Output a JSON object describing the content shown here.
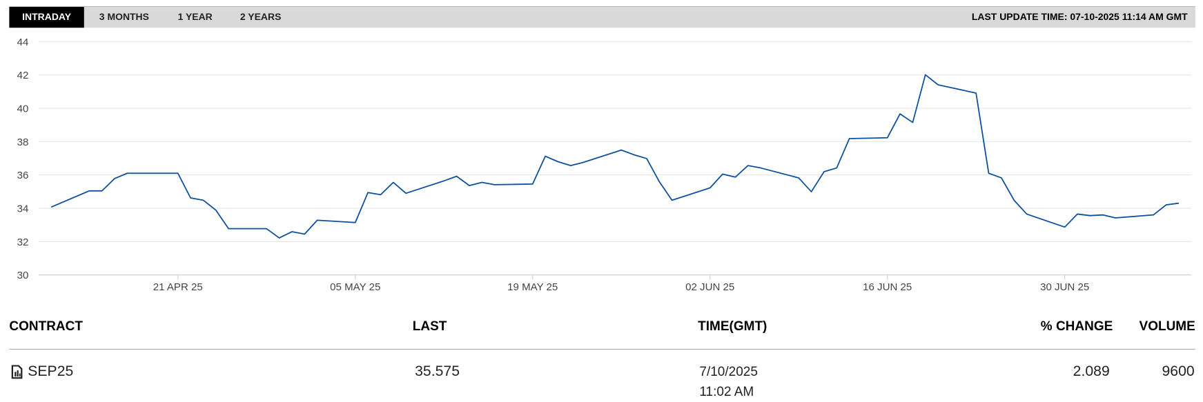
{
  "tabs": [
    "INTRADAY",
    "3 MONTHS",
    "1 YEAR",
    "2 YEARS"
  ],
  "last_update": "LAST UPDATE TIME: 07-10-2025 11:14 AM GMT",
  "chart_data": {
    "type": "line",
    "color": "#0b4f9e",
    "grid": true,
    "x": [
      "2025-04-11",
      "2025-04-14",
      "2025-04-15",
      "2025-04-16",
      "2025-04-17",
      "2025-04-21",
      "2025-04-22",
      "2025-04-23",
      "2025-04-24",
      "2025-04-25",
      "2025-04-28",
      "2025-04-29",
      "2025-04-30",
      "2025-05-01",
      "2025-05-02",
      "2025-05-05",
      "2025-05-06",
      "2025-05-07",
      "2025-05-08",
      "2025-05-09",
      "2025-05-12",
      "2025-05-13",
      "2025-05-14",
      "2025-05-15",
      "2025-05-16",
      "2025-05-19",
      "2025-05-20",
      "2025-05-21",
      "2025-05-22",
      "2025-05-23",
      "2025-05-26",
      "2025-05-27",
      "2025-05-28",
      "2025-05-29",
      "2025-05-30",
      "2025-06-02",
      "2025-06-03",
      "2025-06-04",
      "2025-06-05",
      "2025-06-06",
      "2025-06-09",
      "2025-06-10",
      "2025-06-11",
      "2025-06-12",
      "2025-06-13",
      "2025-06-16",
      "2025-06-17",
      "2025-06-18",
      "2025-06-19",
      "2025-06-20",
      "2025-06-23",
      "2025-06-24",
      "2025-06-25",
      "2025-06-26",
      "2025-06-27",
      "2025-06-30",
      "2025-07-01",
      "2025-07-02",
      "2025-07-03",
      "2025-07-04",
      "2025-07-07",
      "2025-07-08",
      "2025-07-09"
    ],
    "values": [
      34.07,
      35.04,
      35.04,
      35.78,
      36.1,
      36.1,
      34.62,
      34.48,
      33.88,
      32.77,
      32.77,
      32.22,
      32.59,
      32.45,
      33.28,
      33.14,
      34.94,
      34.81,
      35.55,
      34.9,
      35.64,
      35.92,
      35.36,
      35.55,
      35.41,
      35.45,
      37.12,
      36.79,
      36.56,
      36.75,
      37.49,
      37.21,
      36.98,
      35.59,
      34.48,
      35.22,
      36.05,
      35.87,
      36.56,
      36.42,
      35.82,
      34.99,
      36.19,
      36.42,
      38.18,
      38.23,
      39.66,
      39.15,
      42.01,
      41.41,
      40.91,
      36.1,
      35.82,
      34.48,
      33.65,
      32.87,
      33.65,
      33.56,
      33.6,
      33.42,
      33.6,
      34.2,
      34.3
    ],
    "xlim": [
      "2025-04-10",
      "2025-07-10"
    ],
    "xticks": [
      {
        "value": "2025-04-21",
        "label": "21 APR 25"
      },
      {
        "value": "2025-05-05",
        "label": "05 MAY 25"
      },
      {
        "value": "2025-05-19",
        "label": "19 MAY 25"
      },
      {
        "value": "2025-06-02",
        "label": "02 JUN 25"
      },
      {
        "value": "2025-06-16",
        "label": "16 JUN 25"
      },
      {
        "value": "2025-06-30",
        "label": "30 JUN 25"
      }
    ],
    "ylim": [
      30,
      44
    ],
    "yticks": [
      30,
      32,
      34,
      36,
      38,
      40,
      42,
      44
    ]
  },
  "table": {
    "columns": [
      "CONTRACT",
      "LAST",
      "TIME(GMT)",
      "% CHANGE",
      "VOLUME"
    ],
    "rows": [
      [
        "SEP25",
        35.575,
        "7/10/2025 11:02 AM",
        2.089,
        9600
      ]
    ]
  }
}
